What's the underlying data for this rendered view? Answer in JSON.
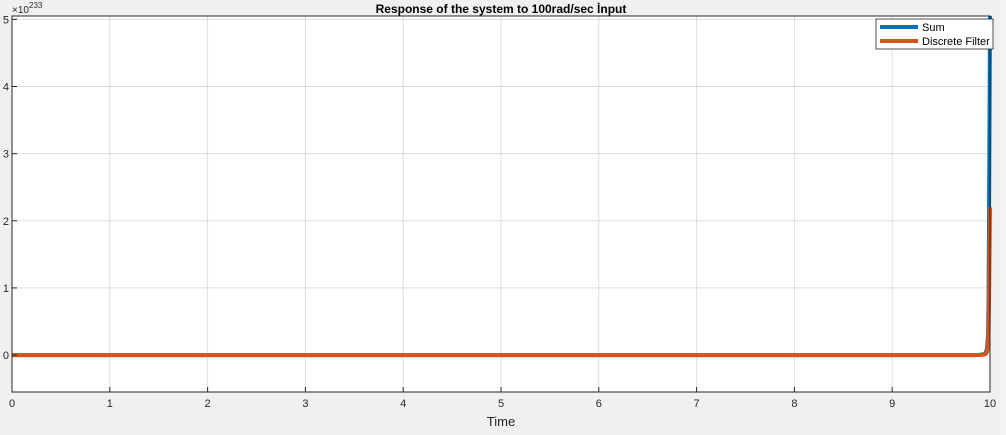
{
  "chart_data": {
    "type": "line",
    "title": "Response of the system to 100rad/sec İnput",
    "xlabel": "Time",
    "ylabel": "",
    "xlim": [
      0,
      10
    ],
    "ylim": [
      -0.55,
      5.05
    ],
    "y_exponent_base": "×10",
    "y_exponent": "233",
    "xticks": [
      0,
      1,
      2,
      3,
      4,
      5,
      6,
      7,
      8,
      9,
      10
    ],
    "xtick_labels": [
      "0",
      "1",
      "2",
      "3",
      "4",
      "5",
      "6",
      "7",
      "8",
      "9",
      "10"
    ],
    "yticks": [
      0,
      1,
      2,
      3,
      4,
      5
    ],
    "ytick_labels": [
      "0",
      "1",
      "2",
      "3",
      "4",
      "5"
    ],
    "grid": true,
    "legend_location": "top-right",
    "series": [
      {
        "name": "Sum",
        "color": "#0072bd",
        "x": [
          0,
          9.84,
          9.88,
          9.91,
          9.93,
          9.95,
          9.96,
          9.97,
          9.98,
          9.985,
          9.99,
          9.995,
          10
        ],
        "y": [
          0,
          0,
          0.002,
          0.006,
          0.012,
          0.025,
          0.05,
          0.1,
          0.3,
          0.8,
          2.0,
          3.5,
          5.05
        ]
      },
      {
        "name": "Discrete Filter",
        "color": "#d95319",
        "x": [
          0,
          9.84,
          9.88,
          9.91,
          9.93,
          9.95,
          9.96,
          9.97,
          9.98,
          9.985,
          9.99,
          9.995,
          10
        ],
        "y": [
          0,
          0,
          0.001,
          0.003,
          0.006,
          0.012,
          0.025,
          0.05,
          0.15,
          0.35,
          0.8,
          1.5,
          2.2
        ]
      }
    ]
  }
}
